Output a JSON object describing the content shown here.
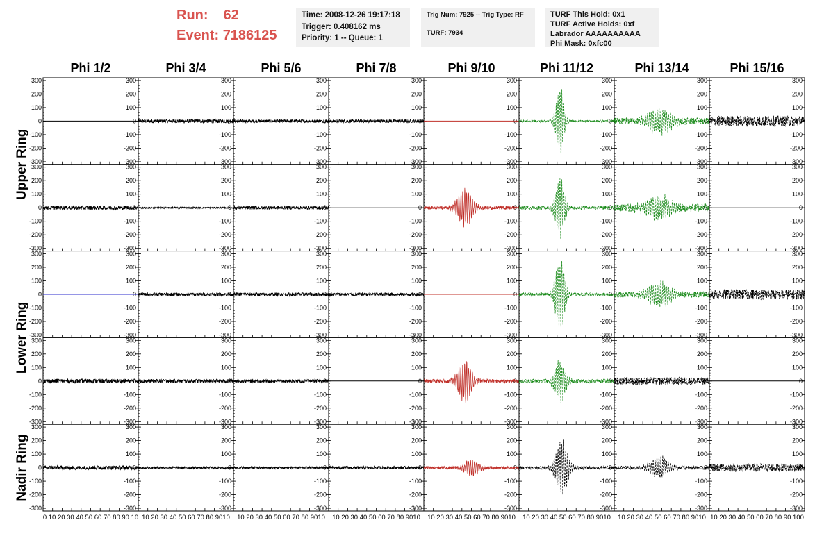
{
  "header": {
    "run_label": "Run:",
    "run_value": "62",
    "event_label": "Event:",
    "event_value": "7186125",
    "box1": {
      "time": "Time: 2008-12-26 19:17:18",
      "trigger": "Trigger: 0.408162 ms",
      "priority": "Priority: 1 -- Queue: 1"
    },
    "box2": {
      "trig": "Trig Num: 7925 -- Trig Type: RF",
      "turf": "TURF: 7934"
    },
    "box3": {
      "hold": "TURF This Hold: 0x1",
      "active": "TURF Active Holds: 0xf",
      "labrador": "Labrador AAAAAAAAAA",
      "phimask": "Phi Mask: 0xfc00"
    }
  },
  "colors": {
    "header_red": "#d9534f",
    "trace_black": "#000000",
    "trace_red": "#c0302a",
    "trace_green": "#1a8a1a",
    "trace_blue": "#2c2ccc",
    "info_box_bg": "#f0f0f0"
  },
  "chart_data": {
    "type": "line",
    "columns": [
      "Phi 1/2",
      "Phi 3/4",
      "Phi 5/6",
      "Phi 7/8",
      "Phi 9/10",
      "Phi 11/12",
      "Phi 13/14",
      "Phi 15/16"
    ],
    "ring_labels": [
      {
        "text": "Upper Ring",
        "rows": [
          0,
          1
        ]
      },
      {
        "text": "Lower Ring",
        "rows": [
          2,
          3
        ]
      },
      {
        "text": "Nadir Ring",
        "rows": [
          4,
          4
        ]
      }
    ],
    "ylim": [
      -320,
      320
    ],
    "yticks": [
      -300,
      -200,
      -100,
      0,
      100,
      200,
      300
    ],
    "xlim": [
      0,
      100
    ],
    "xticks": [
      0,
      10,
      20,
      30,
      40,
      50,
      60,
      70,
      80,
      90,
      100
    ],
    "x_tick_labels_bottom": [
      "0 10 20 30 40 50 60 70 80 90 10",
      "10 20 30 40 50 60 70 80 9010",
      "10 20 30 40 50 60 70 80 9010",
      "10 20 30 40 50 60 70 80 9010",
      "10 20 30 40 50 60 70 80 9010",
      "10 20 30 40 50 60 70 80 9010",
      "10 20 30 40 50 60 70 80 9010",
      "10 20 30 40 50 60 70 80 90 100"
    ],
    "panels": [
      [
        {
          "color": "black",
          "style": "flat",
          "amp": 0,
          "center": 0,
          "width": 0,
          "noise": 0
        },
        {
          "color": "black",
          "style": "solid",
          "amp": 0,
          "center": 0,
          "width": 0,
          "noise": 14
        },
        {
          "color": "black",
          "style": "solid",
          "amp": 0,
          "center": 0,
          "width": 0,
          "noise": 12
        },
        {
          "color": "black",
          "style": "solid",
          "amp": 0,
          "center": 0,
          "width": 0,
          "noise": 12
        },
        {
          "color": "red",
          "style": "flat",
          "amp": 0,
          "center": 0,
          "width": 0,
          "noise": 0
        },
        {
          "color": "green",
          "style": "dashed",
          "amp": 300,
          "center": 43,
          "width": 5,
          "noise": 8
        },
        {
          "color": "green",
          "style": "dashed",
          "amp": 110,
          "center": 48,
          "width": 14,
          "noise": 25
        },
        {
          "color": "black",
          "style": "dashed",
          "amp": 0,
          "center": 0,
          "width": 0,
          "noise": 40
        }
      ],
      [
        {
          "color": "black",
          "style": "solid",
          "amp": 0,
          "center": 0,
          "width": 0,
          "noise": 15
        },
        {
          "color": "black",
          "style": "solid",
          "amp": 0,
          "center": 0,
          "width": 0,
          "noise": 6
        },
        {
          "color": "black",
          "style": "solid",
          "amp": 0,
          "center": 0,
          "width": 0,
          "noise": 13
        },
        {
          "color": "black",
          "style": "flat",
          "amp": 0,
          "center": 0,
          "width": 0,
          "noise": 0
        },
        {
          "color": "red",
          "style": "solid",
          "amp": 150,
          "center": 43,
          "width": 10,
          "noise": 12
        },
        {
          "color": "green",
          "style": "dashed",
          "amp": 260,
          "center": 43,
          "width": 6,
          "noise": 14
        },
        {
          "color": "green",
          "style": "dashed",
          "amp": 90,
          "center": 45,
          "width": 18,
          "noise": 28
        },
        {
          "color": "black",
          "style": "flat",
          "amp": 0,
          "center": 0,
          "width": 0,
          "noise": 0
        }
      ],
      [
        {
          "color": "blue",
          "style": "flat",
          "amp": 0,
          "center": 0,
          "width": 0,
          "noise": 0
        },
        {
          "color": "black",
          "style": "solid",
          "amp": 0,
          "center": 0,
          "width": 0,
          "noise": 12
        },
        {
          "color": "black",
          "style": "solid",
          "amp": 0,
          "center": 0,
          "width": 0,
          "noise": 13
        },
        {
          "color": "black",
          "style": "solid",
          "amp": 0,
          "center": 0,
          "width": 0,
          "noise": 12
        },
        {
          "color": "red",
          "style": "flat",
          "amp": 0,
          "center": 0,
          "width": 0,
          "noise": 0
        },
        {
          "color": "green",
          "style": "dashed",
          "amp": 310,
          "center": 43,
          "width": 6,
          "noise": 12
        },
        {
          "color": "green",
          "style": "dashed",
          "amp": 100,
          "center": 48,
          "width": 15,
          "noise": 22
        },
        {
          "color": "black",
          "style": "dashed",
          "amp": 0,
          "center": 0,
          "width": 0,
          "noise": 38
        }
      ],
      [
        {
          "color": "black",
          "style": "solid",
          "amp": 0,
          "center": 0,
          "width": 0,
          "noise": 16
        },
        {
          "color": "black",
          "style": "solid",
          "amp": 0,
          "center": 0,
          "width": 0,
          "noise": 14
        },
        {
          "color": "black",
          "style": "solid",
          "amp": 0,
          "center": 0,
          "width": 0,
          "noise": 12
        },
        {
          "color": "black",
          "style": "flat",
          "amp": 0,
          "center": 0,
          "width": 0,
          "noise": 0
        },
        {
          "color": "red",
          "style": "solid",
          "amp": 170,
          "center": 43,
          "width": 9,
          "noise": 14
        },
        {
          "color": "green",
          "style": "dashed",
          "amp": 180,
          "center": 43,
          "width": 7,
          "noise": 14
        },
        {
          "color": "black",
          "style": "dashed",
          "amp": 0,
          "center": 0,
          "width": 0,
          "noise": 28
        },
        {
          "color": "black",
          "style": "flat",
          "amp": 0,
          "center": 0,
          "width": 0,
          "noise": 0
        }
      ],
      [
        {
          "color": "black",
          "style": "solid",
          "amp": 0,
          "center": 0,
          "width": 0,
          "noise": 15
        },
        {
          "color": "black",
          "style": "solid",
          "amp": 0,
          "center": 0,
          "width": 0,
          "noise": 9
        },
        {
          "color": "black",
          "style": "solid",
          "amp": 0,
          "center": 0,
          "width": 0,
          "noise": 9
        },
        {
          "color": "black",
          "style": "solid",
          "amp": 0,
          "center": 0,
          "width": 0,
          "noise": 11
        },
        {
          "color": "red",
          "style": "solid",
          "amp": 70,
          "center": 50,
          "width": 10,
          "noise": 10
        },
        {
          "color": "black",
          "style": "dashed",
          "amp": 220,
          "center": 45,
          "width": 8,
          "noise": 12
        },
        {
          "color": "black",
          "style": "dashed",
          "amp": 90,
          "center": 48,
          "width": 12,
          "noise": 14
        },
        {
          "color": "black",
          "style": "dashed",
          "amp": 0,
          "center": 0,
          "width": 0,
          "noise": 30
        }
      ]
    ]
  }
}
